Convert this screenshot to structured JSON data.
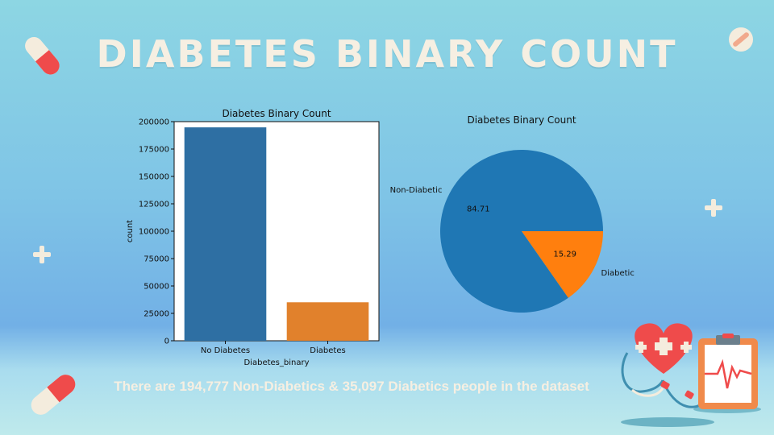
{
  "slide": {
    "title": "DIABETES BINARY COUNT",
    "caption": "There are 194,777 Non-Diabetics & 35,097 Diabetics people in the dataset"
  },
  "colors": {
    "blue": "#2e6fa3",
    "orange": "#e1812c",
    "pie_blue": "#1f77b4",
    "pie_orange": "#ff7f0e"
  },
  "chart_data": [
    {
      "type": "bar",
      "title": "Diabetes Binary Count",
      "xlabel": "Diabetes_binary",
      "ylabel": "count",
      "categories": [
        "No Diabetes",
        "Diabetes"
      ],
      "values": [
        194777,
        35097
      ],
      "ylim": [
        0,
        200000
      ],
      "yticks": [
        0,
        25000,
        50000,
        75000,
        100000,
        125000,
        150000,
        175000,
        200000
      ],
      "grid": false
    },
    {
      "type": "pie",
      "title": "Diabetes Binary Count",
      "labels": [
        "Non-Diabetic",
        "Diabetic"
      ],
      "values": [
        84.71,
        15.29
      ],
      "value_labels": [
        "84.71",
        "15.29"
      ]
    }
  ],
  "icons": [
    "pill-icon",
    "bandage-icon",
    "plus-icon",
    "heart-icon",
    "stethoscope-icon",
    "clipboard-icon"
  ]
}
